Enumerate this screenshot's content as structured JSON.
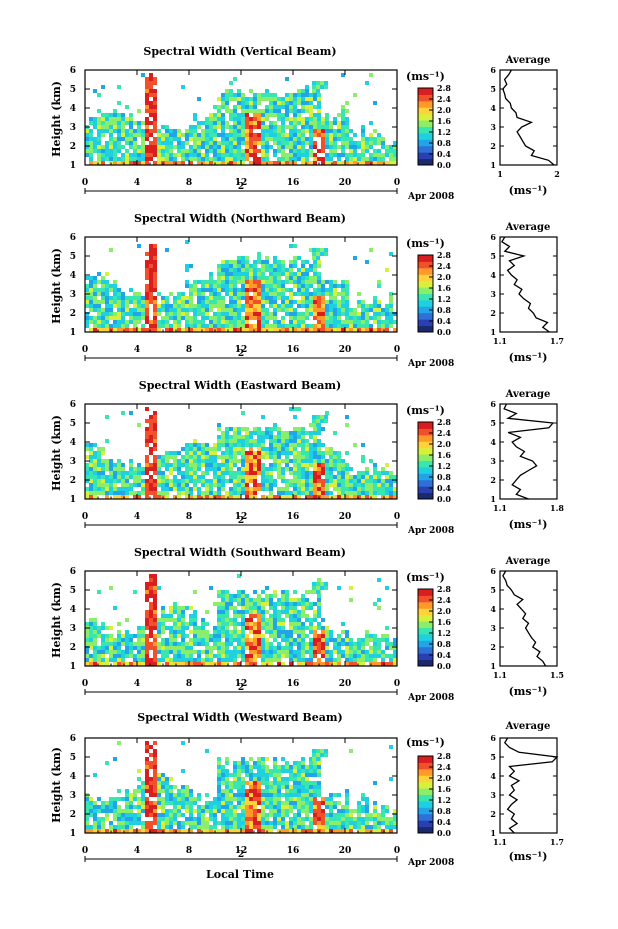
{
  "figure": {
    "xlabel": "Local Time",
    "date_label": "Apr 2008",
    "day_label": "2",
    "colorbar_unit": "(ms⁻¹)",
    "avg_title": "Average",
    "avg_unit": "(ms⁻¹)",
    "ylabel": "Height (km)"
  },
  "colormap": [
    "#1a2a6c",
    "#2a3fb0",
    "#2f6fd8",
    "#22a4e8",
    "#1fd0e0",
    "#3ae6b0",
    "#8aee6a",
    "#d6f03c",
    "#ffd23a",
    "#ff9a2a",
    "#f0502a",
    "#d81e1e"
  ],
  "chart_data": [
    {
      "type": "heatmap",
      "title": "Spectral Width (Vertical Beam)",
      "x_ticks": [
        "0",
        "4",
        "8",
        "12",
        "16",
        "20",
        "0"
      ],
      "y_ticks": [
        "1",
        "2",
        "3",
        "4",
        "5",
        "6"
      ],
      "xlim": [
        0,
        24
      ],
      "ylim": [
        1,
        6
      ],
      "colorbar_ticks": [
        "2.8",
        "2.4",
        "2.0",
        "1.6",
        "1.2",
        "0.8",
        "0.4",
        "0.0"
      ],
      "colorbar_range": [
        0,
        2.8
      ],
      "average": {
        "x_ticks": [
          "1",
          "2"
        ],
        "xlim": [
          1,
          2
        ],
        "ylim": [
          1,
          6
        ],
        "heights": [
          1.0,
          1.25,
          1.5,
          1.75,
          2.0,
          2.25,
          2.5,
          2.75,
          3.0,
          3.25,
          3.5,
          3.75,
          4.0,
          4.25,
          4.5,
          4.75,
          5.0,
          5.25,
          5.5,
          5.75,
          6.0
        ],
        "values": [
          1.95,
          1.85,
          1.55,
          1.6,
          1.45,
          1.4,
          1.35,
          1.3,
          1.38,
          1.55,
          1.3,
          1.28,
          1.2,
          1.18,
          1.1,
          1.08,
          1.05,
          1.12,
          1.08,
          1.15,
          1.2
        ]
      }
    },
    {
      "type": "heatmap",
      "title": "Spectral Width (Northward Beam)",
      "x_ticks": [
        "0",
        "4",
        "8",
        "12",
        "16",
        "20",
        "0"
      ],
      "y_ticks": [
        "1",
        "2",
        "3",
        "4",
        "5",
        "6"
      ],
      "xlim": [
        0,
        24
      ],
      "ylim": [
        1,
        6
      ],
      "colorbar_ticks": [
        "2.8",
        "2.4",
        "2.0",
        "1.6",
        "1.2",
        "0.8",
        "0.4",
        "0.0"
      ],
      "colorbar_range": [
        0,
        2.8
      ],
      "average": {
        "x_ticks": [
          "1.1",
          "1.7"
        ],
        "xlim": [
          1.1,
          1.7
        ],
        "ylim": [
          1,
          6
        ],
        "heights": [
          1.0,
          1.25,
          1.5,
          1.75,
          2.0,
          2.25,
          2.5,
          2.75,
          3.0,
          3.25,
          3.5,
          3.75,
          4.0,
          4.25,
          4.5,
          4.75,
          5.0,
          5.25,
          5.5,
          5.75,
          6.0
        ],
        "values": [
          1.62,
          1.55,
          1.6,
          1.48,
          1.45,
          1.4,
          1.42,
          1.35,
          1.3,
          1.33,
          1.25,
          1.28,
          1.22,
          1.18,
          1.25,
          1.2,
          1.35,
          1.15,
          1.2,
          1.12,
          1.15
        ]
      }
    },
    {
      "type": "heatmap",
      "title": "Spectral Width (Eastward Beam)",
      "x_ticks": [
        "0",
        "4",
        "8",
        "12",
        "16",
        "20",
        "0"
      ],
      "y_ticks": [
        "1",
        "2",
        "3",
        "4",
        "5",
        "6"
      ],
      "xlim": [
        0,
        24
      ],
      "ylim": [
        1,
        6
      ],
      "colorbar_ticks": [
        "2.8",
        "2.4",
        "2.0",
        "1.6",
        "1.2",
        "0.8",
        "0.4",
        "0.0"
      ],
      "colorbar_range": [
        0,
        2.8
      ],
      "average": {
        "x_ticks": [
          "1.1",
          "1.8"
        ],
        "xlim": [
          1.1,
          1.8
        ],
        "ylim": [
          1,
          6
        ],
        "heights": [
          1.0,
          1.25,
          1.5,
          1.75,
          2.0,
          2.25,
          2.5,
          2.75,
          3.0,
          3.25,
          3.5,
          3.75,
          4.0,
          4.25,
          4.5,
          4.75,
          5.0,
          5.25,
          5.5,
          5.75,
          6.0
        ],
        "values": [
          1.45,
          1.3,
          1.35,
          1.25,
          1.3,
          1.35,
          1.45,
          1.55,
          1.5,
          1.35,
          1.4,
          1.3,
          1.25,
          1.35,
          1.2,
          1.7,
          1.75,
          1.2,
          1.3,
          1.15,
          1.18
        ]
      }
    },
    {
      "type": "heatmap",
      "title": "Spectral Width (Southward Beam)",
      "x_ticks": [
        "0",
        "4",
        "8",
        "12",
        "16",
        "20",
        "0"
      ],
      "y_ticks": [
        "1",
        "2",
        "3",
        "4",
        "5",
        "6"
      ],
      "xlim": [
        0,
        24
      ],
      "ylim": [
        1,
        6
      ],
      "colorbar_ticks": [
        "2.8",
        "2.4",
        "2.0",
        "1.6",
        "1.2",
        "0.8",
        "0.4",
        "0.0"
      ],
      "colorbar_range": [
        0,
        2.8
      ],
      "average": {
        "x_ticks": [
          "1.1",
          "1.5"
        ],
        "xlim": [
          1.1,
          1.5
        ],
        "ylim": [
          1,
          6
        ],
        "heights": [
          1.0,
          1.25,
          1.5,
          1.75,
          2.0,
          2.25,
          2.5,
          2.75,
          3.0,
          3.25,
          3.5,
          3.75,
          4.0,
          4.25,
          4.5,
          4.75,
          5.0,
          5.25,
          5.5,
          5.75,
          6.0
        ],
        "values": [
          1.42,
          1.4,
          1.36,
          1.38,
          1.33,
          1.35,
          1.32,
          1.3,
          1.28,
          1.3,
          1.26,
          1.28,
          1.25,
          1.22,
          1.26,
          1.2,
          1.18,
          1.15,
          1.14,
          1.12,
          1.14
        ]
      }
    },
    {
      "type": "heatmap",
      "title": "Spectral Width (Westward Beam)",
      "x_ticks": [
        "0",
        "4",
        "8",
        "12",
        "16",
        "20",
        "0"
      ],
      "y_ticks": [
        "1",
        "2",
        "3",
        "4",
        "5",
        "6"
      ],
      "xlim": [
        0,
        24
      ],
      "ylim": [
        1,
        6
      ],
      "colorbar_ticks": [
        "2.8",
        "2.4",
        "2.0",
        "1.6",
        "1.2",
        "0.8",
        "0.4",
        "0.0"
      ],
      "colorbar_range": [
        0,
        2.8
      ],
      "average": {
        "x_ticks": [
          "1.1",
          "1.7"
        ],
        "xlim": [
          1.1,
          1.7
        ],
        "ylim": [
          1,
          6
        ],
        "heights": [
          1.0,
          1.25,
          1.5,
          1.75,
          2.0,
          2.25,
          2.5,
          2.75,
          3.0,
          3.25,
          3.5,
          3.75,
          4.0,
          4.25,
          4.5,
          4.75,
          5.0,
          5.25,
          5.5,
          5.75,
          6.0
        ],
        "values": [
          1.25,
          1.2,
          1.28,
          1.22,
          1.25,
          1.18,
          1.22,
          1.28,
          1.2,
          1.25,
          1.22,
          1.3,
          1.2,
          1.25,
          1.2,
          1.65,
          1.7,
          1.3,
          1.2,
          1.15,
          1.18
        ]
      }
    }
  ]
}
